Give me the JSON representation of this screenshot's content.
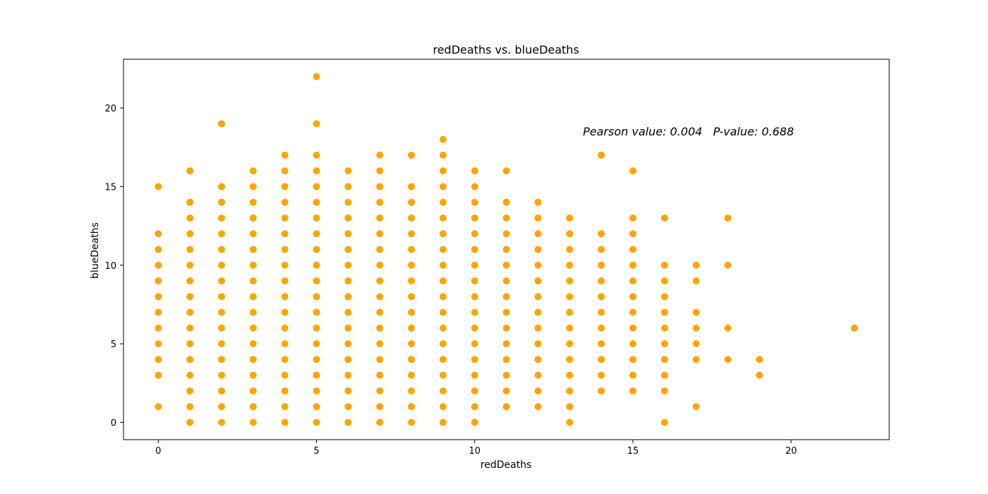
{
  "chart_data": {
    "type": "scatter",
    "title": "redDeaths vs. blueDeaths",
    "xlabel": "redDeaths",
    "ylabel": "blueDeaths",
    "xlim": [
      -1.1,
      23.1
    ],
    "ylim": [
      -1.1,
      23.1
    ],
    "xticks": [
      0,
      5,
      10,
      15,
      20
    ],
    "yticks": [
      0,
      5,
      10,
      15,
      20
    ],
    "grid": false,
    "marker_color": "#ffa500",
    "annotation": "Pearson value: 0.004   P-value: 0.688",
    "series": [
      {
        "name": "redDeaths vs. blueDeaths",
        "points": [
          [
            0,
            1
          ],
          [
            0,
            3
          ],
          [
            0,
            4
          ],
          [
            0,
            5
          ],
          [
            0,
            6
          ],
          [
            0,
            7
          ],
          [
            0,
            8
          ],
          [
            0,
            9
          ],
          [
            0,
            10
          ],
          [
            0,
            11
          ],
          [
            0,
            12
          ],
          [
            0,
            15
          ],
          [
            1,
            0
          ],
          [
            1,
            1
          ],
          [
            1,
            2
          ],
          [
            1,
            3
          ],
          [
            1,
            4
          ],
          [
            1,
            5
          ],
          [
            1,
            6
          ],
          [
            1,
            7
          ],
          [
            1,
            8
          ],
          [
            1,
            9
          ],
          [
            1,
            10
          ],
          [
            1,
            11
          ],
          [
            1,
            12
          ],
          [
            1,
            13
          ],
          [
            1,
            14
          ],
          [
            1,
            16
          ],
          [
            2,
            0
          ],
          [
            2,
            1
          ],
          [
            2,
            2
          ],
          [
            2,
            3
          ],
          [
            2,
            4
          ],
          [
            2,
            5
          ],
          [
            2,
            6
          ],
          [
            2,
            7
          ],
          [
            2,
            8
          ],
          [
            2,
            9
          ],
          [
            2,
            10
          ],
          [
            2,
            11
          ],
          [
            2,
            12
          ],
          [
            2,
            13
          ],
          [
            2,
            14
          ],
          [
            2,
            15
          ],
          [
            2,
            19
          ],
          [
            3,
            0
          ],
          [
            3,
            1
          ],
          [
            3,
            2
          ],
          [
            3,
            3
          ],
          [
            3,
            4
          ],
          [
            3,
            5
          ],
          [
            3,
            6
          ],
          [
            3,
            7
          ],
          [
            3,
            8
          ],
          [
            3,
            9
          ],
          [
            3,
            10
          ],
          [
            3,
            11
          ],
          [
            3,
            12
          ],
          [
            3,
            13
          ],
          [
            3,
            14
          ],
          [
            3,
            15
          ],
          [
            3,
            16
          ],
          [
            4,
            0
          ],
          [
            4,
            1
          ],
          [
            4,
            2
          ],
          [
            4,
            3
          ],
          [
            4,
            4
          ],
          [
            4,
            5
          ],
          [
            4,
            6
          ],
          [
            4,
            7
          ],
          [
            4,
            8
          ],
          [
            4,
            9
          ],
          [
            4,
            10
          ],
          [
            4,
            11
          ],
          [
            4,
            12
          ],
          [
            4,
            13
          ],
          [
            4,
            14
          ],
          [
            4,
            15
          ],
          [
            4,
            16
          ],
          [
            4,
            17
          ],
          [
            5,
            0
          ],
          [
            5,
            1
          ],
          [
            5,
            2
          ],
          [
            5,
            3
          ],
          [
            5,
            4
          ],
          [
            5,
            5
          ],
          [
            5,
            6
          ],
          [
            5,
            7
          ],
          [
            5,
            8
          ],
          [
            5,
            9
          ],
          [
            5,
            10
          ],
          [
            5,
            11
          ],
          [
            5,
            12
          ],
          [
            5,
            13
          ],
          [
            5,
            14
          ],
          [
            5,
            15
          ],
          [
            5,
            16
          ],
          [
            5,
            17
          ],
          [
            5,
            19
          ],
          [
            5,
            22
          ],
          [
            6,
            0
          ],
          [
            6,
            1
          ],
          [
            6,
            2
          ],
          [
            6,
            3
          ],
          [
            6,
            4
          ],
          [
            6,
            5
          ],
          [
            6,
            6
          ],
          [
            6,
            7
          ],
          [
            6,
            8
          ],
          [
            6,
            9
          ],
          [
            6,
            10
          ],
          [
            6,
            11
          ],
          [
            6,
            12
          ],
          [
            6,
            13
          ],
          [
            6,
            14
          ],
          [
            6,
            15
          ],
          [
            6,
            16
          ],
          [
            7,
            0
          ],
          [
            7,
            1
          ],
          [
            7,
            2
          ],
          [
            7,
            3
          ],
          [
            7,
            4
          ],
          [
            7,
            5
          ],
          [
            7,
            6
          ],
          [
            7,
            7
          ],
          [
            7,
            8
          ],
          [
            7,
            9
          ],
          [
            7,
            10
          ],
          [
            7,
            11
          ],
          [
            7,
            12
          ],
          [
            7,
            13
          ],
          [
            7,
            14
          ],
          [
            7,
            15
          ],
          [
            7,
            16
          ],
          [
            7,
            17
          ],
          [
            8,
            0
          ],
          [
            8,
            1
          ],
          [
            8,
            2
          ],
          [
            8,
            3
          ],
          [
            8,
            4
          ],
          [
            8,
            5
          ],
          [
            8,
            6
          ],
          [
            8,
            7
          ],
          [
            8,
            8
          ],
          [
            8,
            9
          ],
          [
            8,
            10
          ],
          [
            8,
            11
          ],
          [
            8,
            12
          ],
          [
            8,
            13
          ],
          [
            8,
            14
          ],
          [
            8,
            15
          ],
          [
            8,
            17
          ],
          [
            9,
            0
          ],
          [
            9,
            1
          ],
          [
            9,
            2
          ],
          [
            9,
            3
          ],
          [
            9,
            4
          ],
          [
            9,
            5
          ],
          [
            9,
            6
          ],
          [
            9,
            7
          ],
          [
            9,
            8
          ],
          [
            9,
            9
          ],
          [
            9,
            10
          ],
          [
            9,
            11
          ],
          [
            9,
            12
          ],
          [
            9,
            13
          ],
          [
            9,
            14
          ],
          [
            9,
            15
          ],
          [
            9,
            16
          ],
          [
            9,
            17
          ],
          [
            9,
            18
          ],
          [
            10,
            0
          ],
          [
            10,
            1
          ],
          [
            10,
            2
          ],
          [
            10,
            3
          ],
          [
            10,
            4
          ],
          [
            10,
            5
          ],
          [
            10,
            6
          ],
          [
            10,
            7
          ],
          [
            10,
            8
          ],
          [
            10,
            9
          ],
          [
            10,
            10
          ],
          [
            10,
            11
          ],
          [
            10,
            12
          ],
          [
            10,
            13
          ],
          [
            10,
            14
          ],
          [
            10,
            15
          ],
          [
            10,
            16
          ],
          [
            11,
            1
          ],
          [
            11,
            2
          ],
          [
            11,
            3
          ],
          [
            11,
            4
          ],
          [
            11,
            5
          ],
          [
            11,
            6
          ],
          [
            11,
            7
          ],
          [
            11,
            8
          ],
          [
            11,
            9
          ],
          [
            11,
            10
          ],
          [
            11,
            11
          ],
          [
            11,
            12
          ],
          [
            11,
            13
          ],
          [
            11,
            14
          ],
          [
            11,
            16
          ],
          [
            12,
            1
          ],
          [
            12,
            2
          ],
          [
            12,
            3
          ],
          [
            12,
            4
          ],
          [
            12,
            5
          ],
          [
            12,
            6
          ],
          [
            12,
            7
          ],
          [
            12,
            8
          ],
          [
            12,
            9
          ],
          [
            12,
            10
          ],
          [
            12,
            11
          ],
          [
            12,
            12
          ],
          [
            12,
            13
          ],
          [
            12,
            14
          ],
          [
            13,
            0
          ],
          [
            13,
            1
          ],
          [
            13,
            2
          ],
          [
            13,
            3
          ],
          [
            13,
            4
          ],
          [
            13,
            5
          ],
          [
            13,
            6
          ],
          [
            13,
            7
          ],
          [
            13,
            8
          ],
          [
            13,
            9
          ],
          [
            13,
            10
          ],
          [
            13,
            11
          ],
          [
            13,
            12
          ],
          [
            13,
            13
          ],
          [
            14,
            2
          ],
          [
            14,
            3
          ],
          [
            14,
            4
          ],
          [
            14,
            5
          ],
          [
            14,
            6
          ],
          [
            14,
            7
          ],
          [
            14,
            8
          ],
          [
            14,
            9
          ],
          [
            14,
            10
          ],
          [
            14,
            11
          ],
          [
            14,
            12
          ],
          [
            14,
            17
          ],
          [
            15,
            2
          ],
          [
            15,
            3
          ],
          [
            15,
            4
          ],
          [
            15,
            5
          ],
          [
            15,
            6
          ],
          [
            15,
            7
          ],
          [
            15,
            8
          ],
          [
            15,
            9
          ],
          [
            15,
            10
          ],
          [
            15,
            11
          ],
          [
            15,
            12
          ],
          [
            15,
            13
          ],
          [
            15,
            16
          ],
          [
            16,
            0
          ],
          [
            16,
            2
          ],
          [
            16,
            3
          ],
          [
            16,
            4
          ],
          [
            16,
            5
          ],
          [
            16,
            6
          ],
          [
            16,
            7
          ],
          [
            16,
            8
          ],
          [
            16,
            9
          ],
          [
            16,
            10
          ],
          [
            16,
            13
          ],
          [
            17,
            1
          ],
          [
            17,
            4
          ],
          [
            17,
            5
          ],
          [
            17,
            6
          ],
          [
            17,
            7
          ],
          [
            17,
            9
          ],
          [
            17,
            10
          ],
          [
            18,
            4
          ],
          [
            18,
            6
          ],
          [
            18,
            10
          ],
          [
            18,
            13
          ],
          [
            19,
            3
          ],
          [
            19,
            4
          ],
          [
            22,
            6
          ]
        ]
      }
    ]
  }
}
